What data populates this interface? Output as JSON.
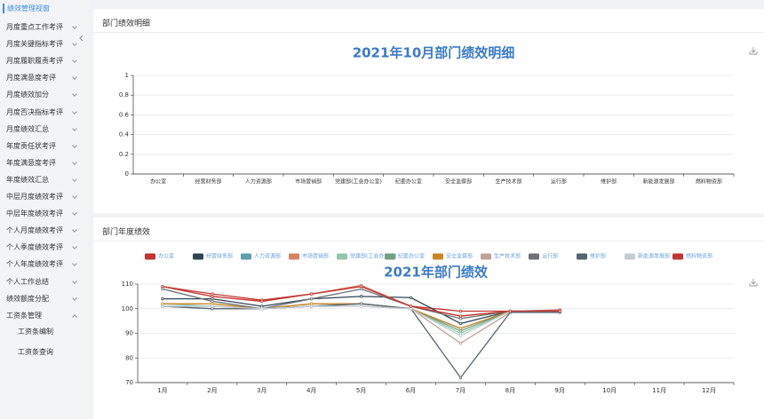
{
  "sidebar": {
    "title": "绩效管理视窗",
    "items": [
      "月度重点工作考评",
      "月度关键指标考评",
      "月度履职履责考评",
      "月度满意度考评",
      "月度绩效加分",
      "月度否决指标考评",
      "月度绩效汇总",
      "年度责任状考评",
      "年度满意度考评",
      "年度绩效汇总",
      "中层月度绩效考评",
      "中层年度绩效考评",
      "个人月度绩效考评",
      "个人季度绩效考评",
      "个人年度绩效考评",
      "个人工作总结",
      "绩效额度分配"
    ],
    "submenu": {
      "label": "工资条管理",
      "items": [
        "工资条编制",
        "工资条查询"
      ]
    }
  },
  "panels": [
    {
      "title": "部门绩效明细"
    },
    {
      "title": "部门年度绩效"
    }
  ],
  "chart_data": [
    {
      "type": "bar",
      "title": "2021年10月部门绩效明细",
      "categories": [
        "办公室",
        "经营财务部",
        "人力资源部",
        "市场营销部",
        "党建部(工会办公室)",
        "纪委办公室",
        "安全监察部",
        "生产技术部",
        "运行部",
        "维护部",
        "新能源发展部",
        "燃料物资部"
      ],
      "ylim": [
        0,
        1
      ],
      "yticks": [
        0,
        0.2,
        0.4,
        0.6,
        0.8,
        1
      ],
      "grid": true
    },
    {
      "type": "line",
      "title": "2021年部门绩效",
      "categories": [
        "1月",
        "2月",
        "3月",
        "4月",
        "5月",
        "6月",
        "7月",
        "8月",
        "9月",
        "10月",
        "11月",
        "12月"
      ],
      "ylim": [
        70,
        110
      ],
      "yticks": [
        70,
        80,
        90,
        100,
        110
      ],
      "grid": true,
      "series": [
        {
          "name": "办公室",
          "color": "#c23531",
          "values": [
            109,
            106,
            103.5,
            106,
            109,
            101,
            99,
            99,
            99.5,
            null,
            null,
            null
          ]
        },
        {
          "name": "经营财务部",
          "color": "#2f4554",
          "values": [
            104,
            104,
            101,
            104,
            105,
            104.5,
            94,
            99,
            99,
            null,
            null,
            null
          ]
        },
        {
          "name": "人力资源部",
          "color": "#61a0a8",
          "values": [
            101,
            101,
            100,
            101,
            102,
            100,
            92,
            99,
            99,
            null,
            null,
            null
          ]
        },
        {
          "name": "市场营销部",
          "color": "#d48265",
          "values": [
            109,
            105,
            103,
            106,
            109.5,
            101,
            97,
            99,
            99,
            null,
            null,
            null
          ]
        },
        {
          "name": "党建部(工会办公室)",
          "color": "#91c7ae",
          "values": [
            102,
            101,
            100,
            101,
            102,
            100,
            90,
            99,
            99,
            null,
            null,
            null
          ]
        },
        {
          "name": "纪委办公室",
          "color": "#749f83",
          "values": [
            101,
            100,
            100,
            102,
            102,
            100,
            91,
            99,
            99,
            null,
            null,
            null
          ]
        },
        {
          "name": "安全监察部",
          "color": "#ca8622",
          "values": [
            102,
            102,
            100,
            102,
            102,
            100,
            92,
            99,
            99,
            null,
            null,
            null
          ]
        },
        {
          "name": "生产技术部",
          "color": "#bda29a",
          "values": [
            101,
            100,
            100,
            101,
            101,
            100,
            86,
            98.5,
            99,
            null,
            null,
            null
          ]
        },
        {
          "name": "运行部",
          "color": "#6e7074",
          "values": [
            108,
            103,
            100,
            104,
            108,
            101,
            96,
            99,
            99,
            null,
            null,
            null
          ]
        },
        {
          "name": "维护部",
          "color": "#546570",
          "values": [
            101,
            100,
            100,
            101,
            102,
            100,
            72,
            98.5,
            98.5,
            null,
            null,
            null
          ]
        },
        {
          "name": "新能源发展部",
          "color": "#c4ccd3",
          "values": [
            101,
            101,
            100,
            101,
            101,
            100,
            89,
            99,
            99,
            null,
            null,
            null
          ]
        },
        {
          "name": "燃料物资部",
          "color": "#c23531",
          "values": [
            109,
            105,
            103,
            106,
            109,
            101,
            97,
            99,
            99,
            null,
            null,
            null
          ]
        }
      ]
    }
  ]
}
